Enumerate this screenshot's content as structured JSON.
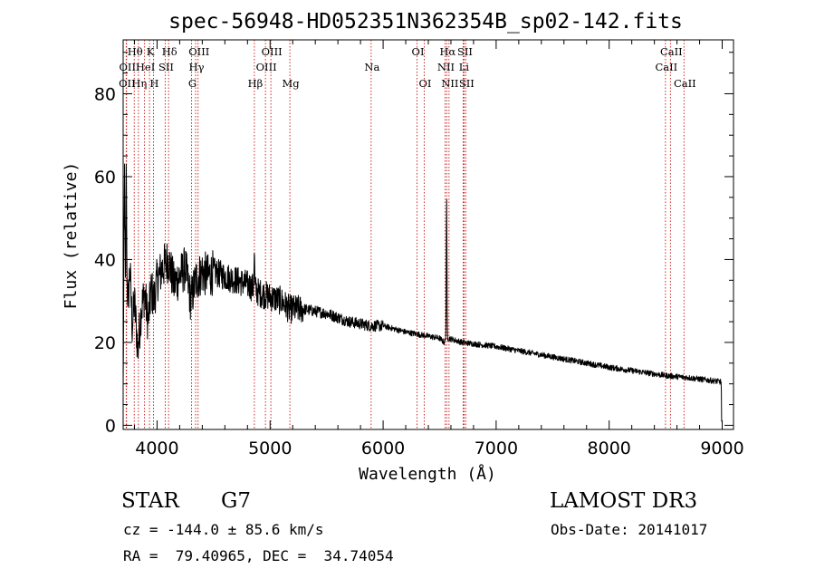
{
  "chart_data": {
    "type": "line",
    "title": "spec-56948-HD052351N362354B_sp02-142.fits",
    "xlabel": "Wavelength (Å)",
    "ylabel": "Flux (relative)",
    "xlim": [
      3700,
      9100
    ],
    "ylim": [
      -1,
      93
    ],
    "xticks": [
      4000,
      5000,
      6000,
      7000,
      8000,
      9000
    ],
    "yticks": [
      0,
      20,
      40,
      60,
      80
    ],
    "spectrum_anchors": {
      "x": [
        3700,
        3712,
        3722,
        3732,
        3745,
        3760,
        3780,
        3800,
        3830,
        3860,
        3890,
        3920,
        3950,
        3970,
        4000,
        4050,
        4100,
        4150,
        4200,
        4250,
        4300,
        4340,
        4400,
        4450,
        4500,
        4600,
        4700,
        4800,
        4860,
        4900,
        5000,
        5100,
        5170,
        5300,
        5500,
        5700,
        5890,
        6000,
        6200,
        6300,
        6500,
        6540,
        6562,
        6580,
        6700,
        7000,
        7500,
        8000,
        8500,
        8700,
        8900,
        8990,
        9000
      ],
      "y": [
        8,
        63,
        26,
        35,
        30,
        38,
        24,
        30,
        18,
        28,
        32,
        25,
        33,
        30,
        35,
        38,
        40,
        34,
        36,
        38,
        30,
        35,
        37,
        36,
        37,
        36,
        35,
        34,
        33,
        32,
        31,
        30,
        28,
        28,
        27,
        25,
        24,
        24,
        22.5,
        22,
        21,
        20,
        21,
        21,
        20,
        19,
        16.5,
        14,
        12,
        11.5,
        10.8,
        10.5,
        1
      ],
      "note": "Flux values read approximately from the plotted spectrum (relative units)."
    },
    "emission_features": [
      {
        "wavelength": 3727,
        "flux": 63
      },
      {
        "wavelength": 4861,
        "flux": 42
      },
      {
        "wavelength": 6562,
        "flux": 55
      }
    ],
    "spectral_lines": [
      {
        "wavelength": 3727,
        "label": "OII",
        "row": 3
      },
      {
        "wavelength": 3730,
        "label": "OII",
        "row": 2
      },
      {
        "wavelength": 3798,
        "label": "Hθ",
        "row": 1
      },
      {
        "wavelength": 3835,
        "label": "Hη",
        "row": 3
      },
      {
        "wavelength": 3889,
        "label": "HeI",
        "row": 2
      },
      {
        "wavelength": 3933,
        "label": "K",
        "row": 1
      },
      {
        "wavelength": 3968,
        "label": "H",
        "row": 3
      },
      {
        "wavelength": 4072,
        "label": "SII",
        "row": 2
      },
      {
        "wavelength": 4102,
        "label": "Hδ",
        "row": 1
      },
      {
        "wavelength": 4305,
        "label": "G",
        "row": 3
      },
      {
        "wavelength": 4341,
        "label": "Hγ",
        "row": 2
      },
      {
        "wavelength": 4363,
        "label": "OIII",
        "row": 1
      },
      {
        "wavelength": 4861,
        "label": "Hβ",
        "row": 3
      },
      {
        "wavelength": 4959,
        "label": "OIII",
        "row": 2
      },
      {
        "wavelength": 5007,
        "label": "OIII",
        "row": 1
      },
      {
        "wavelength": 5175,
        "label": "Mg",
        "row": 3
      },
      {
        "wavelength": 5894,
        "label": "Na",
        "row": 2
      },
      {
        "wavelength": 6300,
        "label": "OI",
        "row": 1
      },
      {
        "wavelength": 6364,
        "label": "OI",
        "row": 3
      },
      {
        "wavelength": 6548,
        "label": "NII",
        "row": 2
      },
      {
        "wavelength": 6563,
        "label": "Hα",
        "row": 1
      },
      {
        "wavelength": 6583,
        "label": "NII",
        "row": 3
      },
      {
        "wavelength": 6708,
        "label": "Li",
        "row": 2
      },
      {
        "wavelength": 6716,
        "label": "SII",
        "row": 1
      },
      {
        "wavelength": 6731,
        "label": "SII",
        "row": 3
      },
      {
        "wavelength": 8498,
        "label": "CaII",
        "row": 2
      },
      {
        "wavelength": 8542,
        "label": "CaII",
        "row": 1
      },
      {
        "wavelength": 8662,
        "label": "CaII",
        "row": 3
      }
    ],
    "colors": {
      "spectrum": "#000000",
      "line_markers": "#c81414",
      "axes": "#000000"
    }
  },
  "info": {
    "object_class": "STAR",
    "subclass": "G7",
    "survey": "LAMOST DR3",
    "redshift_text": "cz = -144.0 ± 85.6 km/s",
    "obs_date_text": "Obs-Date: 20141017",
    "coords_text": "RA =  79.40965, DEC =  34.74054"
  }
}
